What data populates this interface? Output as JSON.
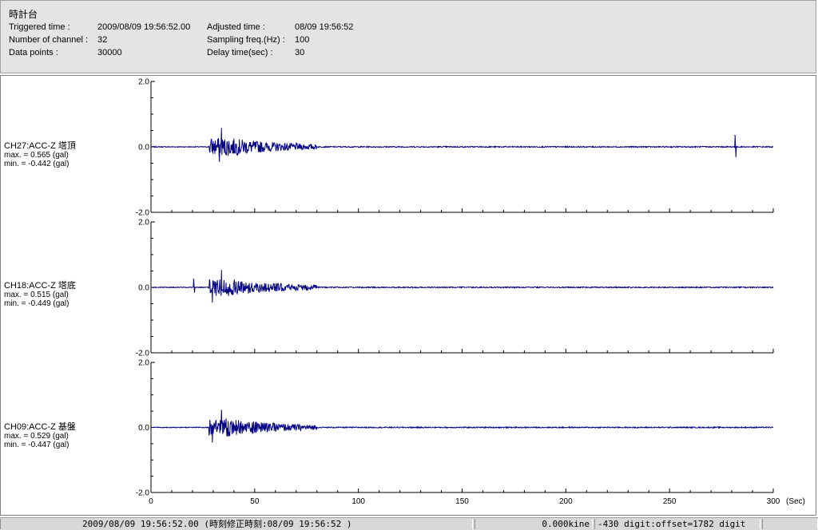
{
  "header": {
    "title": "時計台",
    "rows": [
      {
        "label": "Triggered time :",
        "value": "2009/08/09 19:56:52.00",
        "label2": "Adjusted time :",
        "value2": "08/09 19:56:52"
      },
      {
        "label": "Number of channel :",
        "value": "32",
        "label2": "Sampling freq.(Hz) :",
        "value2": "100"
      },
      {
        "label": "Data points :",
        "value": "30000",
        "label2": "Delay time(sec) :",
        "value2": "30"
      }
    ]
  },
  "channels": [
    {
      "name": "CH27:ACC-Z 塔頂",
      "max": "max. = 0.565 (gal)",
      "min": "min. = -0.442 (gal)"
    },
    {
      "name": "CH18:ACC-Z 塔底",
      "max": "max. = 0.515 (gal)",
      "min": "min. = -0.449 (gal)"
    },
    {
      "name": "CH09:ACC-Z 基盤",
      "max": "max. = 0.529 (gal)",
      "min": "min. = -0.447 (gal)"
    }
  ],
  "status": {
    "time": "2009/08/09 19:56:52.00  (時刻修正時刻:08/09 19:56:52  )",
    "kine": "0.000kine",
    "digit": "-430 digit:offset=1782 digit",
    "extra": ""
  },
  "chart_data": {
    "type": "line",
    "x_unit": "(Sec)",
    "x_ticks": [
      "0",
      "50",
      "100",
      "150",
      "200",
      "250",
      "300"
    ],
    "y_ticks": [
      "2.0",
      "0.0",
      "-2.0"
    ],
    "xlim": [
      0,
      300
    ],
    "ylim": [
      -2.0,
      2.0
    ],
    "line_color": "#000080",
    "series": [
      {
        "name": "CH27:ACC-Z 塔頂",
        "max": 0.565,
        "min": -0.442,
        "events": [
          {
            "t": 34.0,
            "v": 0.565
          },
          {
            "t": 33.0,
            "v": -0.442
          },
          {
            "t": 281.5,
            "v": 0.35
          },
          {
            "t": 282.0,
            "v": -0.3
          }
        ]
      },
      {
        "name": "CH18:ACC-Z 塔底",
        "max": 0.515,
        "min": -0.449,
        "events": [
          {
            "t": 34.0,
            "v": 0.515
          },
          {
            "t": 29.5,
            "v": -0.449
          },
          {
            "t": 20.5,
            "v": 0.25
          },
          {
            "t": 21.0,
            "v": -0.15
          }
        ]
      },
      {
        "name": "CH09:ACC-Z 基盤",
        "max": 0.529,
        "min": -0.447,
        "events": [
          {
            "t": 34.0,
            "v": 0.529
          },
          {
            "t": 29.5,
            "v": -0.447
          }
        ]
      }
    ]
  }
}
